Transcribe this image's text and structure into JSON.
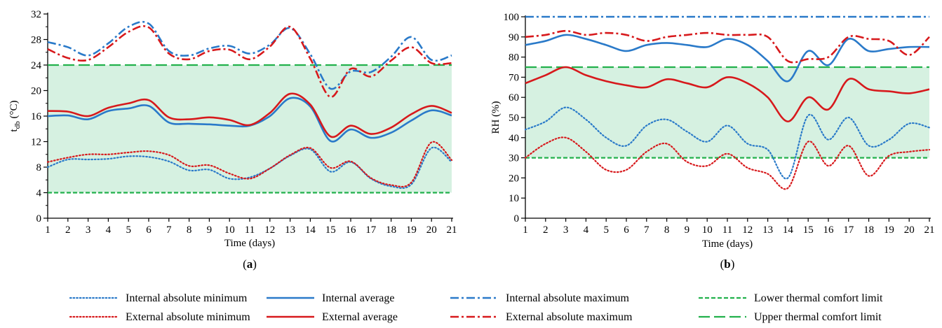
{
  "colors": {
    "internal": "#2a7ac9",
    "external": "#d7191c",
    "comfort": "#22b14c",
    "comfort_fill": "#d6f1e1"
  },
  "legend": [
    {
      "label": "Internal absolute minimum",
      "color": "#2a7ac9",
      "dash": "dot"
    },
    {
      "label": "Internal average",
      "color": "#2a7ac9",
      "dash": "solid"
    },
    {
      "label": "Internal absolute maximum",
      "color": "#2a7ac9",
      "dash": "dashdot"
    },
    {
      "label": "Lower thermal comfort limit",
      "color": "#22b14c",
      "dash": "short"
    },
    {
      "label": "External absolute minimum",
      "color": "#d7191c",
      "dash": "dot"
    },
    {
      "label": "External average",
      "color": "#d7191c",
      "dash": "solid"
    },
    {
      "label": "External absolute maximum",
      "color": "#d7191c",
      "dash": "dashdot"
    },
    {
      "label": "Upper thermal comfort limit",
      "color": "#22b14c",
      "dash": "long"
    }
  ],
  "chart_data": [
    {
      "panel": "(a)",
      "type": "line",
      "xlabel": "Time (days)",
      "ylabel": "t_db (°C)",
      "ylabel_main": "t",
      "ylabel_sub": "db",
      "ylabel_rest": " (°C)",
      "ylim": [
        0,
        32
      ],
      "yticks": [
        0,
        4,
        8,
        12,
        16,
        20,
        24,
        28,
        32
      ],
      "x": [
        1,
        2,
        3,
        4,
        5,
        6,
        7,
        8,
        9,
        10,
        11,
        12,
        13,
        14,
        15,
        16,
        17,
        18,
        19,
        20,
        21
      ],
      "comfort_band": [
        4,
        24
      ],
      "series": [
        {
          "name": "Internal absolute minimum",
          "color": "#2a7ac9",
          "dash": "dot",
          "values": [
            8.0,
            9.2,
            9.2,
            9.3,
            9.7,
            9.6,
            8.9,
            7.5,
            7.6,
            6.2,
            6.4,
            7.8,
            9.8,
            10.8,
            7.3,
            8.8,
            6.2,
            5.0,
            5.3,
            11.0,
            8.8
          ]
        },
        {
          "name": "Internal average",
          "color": "#2a7ac9",
          "dash": "solid",
          "values": [
            16.0,
            16.1,
            15.5,
            16.8,
            17.2,
            17.6,
            15.0,
            14.8,
            14.7,
            14.5,
            14.5,
            16.0,
            18.8,
            17.5,
            12.1,
            13.9,
            12.6,
            13.4,
            15.3,
            16.9,
            16.1
          ]
        },
        {
          "name": "Internal absolute maximum",
          "color": "#2a7ac9",
          "dash": "dashdot",
          "values": [
            27.6,
            26.8,
            25.5,
            27.4,
            30.0,
            30.5,
            26.2,
            25.5,
            26.6,
            27.0,
            25.8,
            27.2,
            29.8,
            25.7,
            20.3,
            23.0,
            22.9,
            25.3,
            28.4,
            24.8,
            25.5
          ]
        },
        {
          "name": "External absolute minimum",
          "color": "#d7191c",
          "dash": "dot",
          "values": [
            8.8,
            9.5,
            10.0,
            10.0,
            10.3,
            10.5,
            9.9,
            8.2,
            8.3,
            7.0,
            6.2,
            7.8,
            9.9,
            11.0,
            7.9,
            8.9,
            6.3,
            5.2,
            5.6,
            11.9,
            9.1
          ]
        },
        {
          "name": "External average",
          "color": "#d7191c",
          "dash": "solid",
          "values": [
            16.8,
            16.7,
            16.0,
            17.3,
            18.0,
            18.5,
            15.8,
            15.5,
            15.8,
            15.4,
            14.6,
            16.5,
            19.5,
            17.8,
            12.8,
            14.5,
            13.2,
            14.2,
            16.3,
            17.6,
            16.5
          ]
        },
        {
          "name": "External absolute maximum",
          "color": "#d7191c",
          "dash": "dashdot",
          "values": [
            26.5,
            25.1,
            24.8,
            26.8,
            29.2,
            29.9,
            25.8,
            24.9,
            26.2,
            26.4,
            24.9,
            26.9,
            30.0,
            25.0,
            19.0,
            23.4,
            22.2,
            24.7,
            26.8,
            24.3,
            24.3
          ]
        },
        {
          "name": "Lower thermal comfort limit",
          "color": "#22b14c",
          "dash": "short",
          "values": [
            4,
            4,
            4,
            4,
            4,
            4,
            4,
            4,
            4,
            4,
            4,
            4,
            4,
            4,
            4,
            4,
            4,
            4,
            4,
            4,
            4
          ]
        },
        {
          "name": "Upper thermal comfort limit",
          "color": "#22b14c",
          "dash": "long",
          "values": [
            24,
            24,
            24,
            24,
            24,
            24,
            24,
            24,
            24,
            24,
            24,
            24,
            24,
            24,
            24,
            24,
            24,
            24,
            24,
            24,
            24
          ]
        }
      ]
    },
    {
      "panel": "(b)",
      "type": "line",
      "xlabel": "Time (days)",
      "ylabel": "RH (%)",
      "ylabel_main": "RH (%)",
      "ylabel_sub": "",
      "ylabel_rest": "",
      "ylim": [
        0,
        100
      ],
      "yticks": [
        0,
        10,
        20,
        30,
        40,
        50,
        60,
        70,
        80,
        90,
        100
      ],
      "x": [
        1,
        2,
        3,
        4,
        5,
        6,
        7,
        8,
        9,
        10,
        11,
        12,
        13,
        14,
        15,
        16,
        17,
        18,
        19,
        20,
        21
      ],
      "comfort_band": [
        30,
        75
      ],
      "series": [
        {
          "name": "Internal absolute minimum",
          "color": "#2a7ac9",
          "dash": "dot",
          "values": [
            44,
            48,
            55,
            49,
            40,
            36,
            46,
            49,
            43,
            38,
            46,
            37,
            34,
            20,
            51,
            39,
            50,
            36,
            39,
            47,
            45
          ]
        },
        {
          "name": "Internal average",
          "color": "#2a7ac9",
          "dash": "solid",
          "values": [
            86,
            88,
            91,
            89,
            86,
            83,
            86,
            87,
            86,
            85,
            89,
            86,
            78,
            68,
            83,
            76,
            89,
            83,
            84,
            85,
            85
          ]
        },
        {
          "name": "Internal absolute maximum",
          "color": "#2a7ac9",
          "dash": "dashdot",
          "values": [
            100,
            100,
            100,
            100,
            100,
            100,
            100,
            100,
            100,
            100,
            100,
            100,
            100,
            100,
            100,
            100,
            100,
            100,
            100,
            100,
            100
          ]
        },
        {
          "name": "External absolute minimum",
          "color": "#d7191c",
          "dash": "dot",
          "values": [
            30,
            37,
            40,
            33,
            24,
            24,
            33,
            37,
            28,
            26,
            32,
            25,
            22,
            15,
            38,
            26,
            36,
            21,
            31,
            33,
            34
          ]
        },
        {
          "name": "External average",
          "color": "#d7191c",
          "dash": "solid",
          "values": [
            67,
            71,
            75,
            71,
            68,
            66,
            65,
            69,
            67,
            65,
            70,
            67,
            60,
            48,
            60,
            54,
            69,
            64,
            63,
            62,
            64
          ]
        },
        {
          "name": "External absolute maximum",
          "color": "#d7191c",
          "dash": "dashdot",
          "values": [
            90,
            91,
            93,
            91,
            92,
            91,
            88,
            90,
            91,
            92,
            91,
            91,
            90,
            78,
            79,
            80,
            90,
            89,
            88,
            81,
            90
          ]
        },
        {
          "name": "Lower thermal comfort limit",
          "color": "#22b14c",
          "dash": "short",
          "values": [
            30,
            30,
            30,
            30,
            30,
            30,
            30,
            30,
            30,
            30,
            30,
            30,
            30,
            30,
            30,
            30,
            30,
            30,
            30,
            30,
            30
          ]
        },
        {
          "name": "Upper thermal comfort limit",
          "color": "#22b14c",
          "dash": "long",
          "values": [
            75,
            75,
            75,
            75,
            75,
            75,
            75,
            75,
            75,
            75,
            75,
            75,
            75,
            75,
            75,
            75,
            75,
            75,
            75,
            75,
            75
          ]
        }
      ]
    }
  ]
}
